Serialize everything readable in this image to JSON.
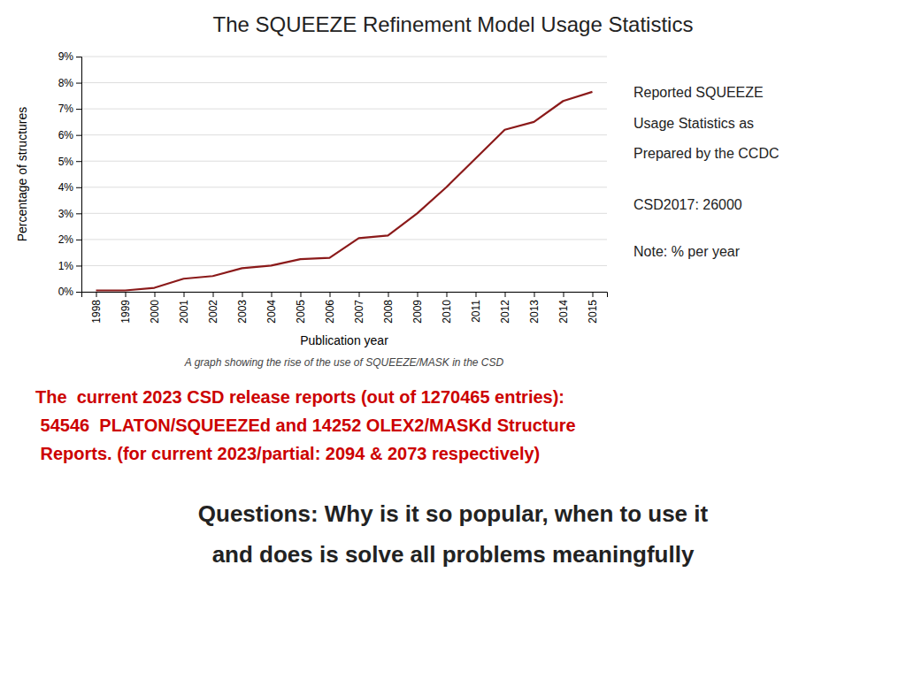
{
  "chart_data": {
    "type": "line",
    "title": "The SQUEEZE Refinement Model Usage Statistics",
    "x": [
      1998,
      1999,
      2000,
      2001,
      2002,
      2003,
      2004,
      2005,
      2006,
      2007,
      2008,
      2009,
      2010,
      2011,
      2012,
      2013,
      2014,
      2015
    ],
    "values": [
      0.05,
      0.05,
      0.15,
      0.5,
      0.6,
      0.9,
      1.0,
      1.25,
      1.3,
      2.05,
      2.15,
      3.0,
      4.0,
      5.1,
      6.2,
      6.5,
      7.3,
      7.65
    ],
    "color": "#8b1a1a",
    "xlabel": "Publication year",
    "ylabel": "Percentage of structures",
    "xlim": [
      1997.5,
      2015.5
    ],
    "xticks": [
      1998,
      1999,
      2000,
      2001,
      2002,
      2003,
      2004,
      2005,
      2006,
      2007,
      2008,
      2009,
      2010,
      2011,
      2012,
      2013,
      2014,
      2015
    ],
    "ylim": [
      0,
      9
    ],
    "yticks": [
      {
        "value": 0,
        "label": "0%"
      },
      {
        "value": 1,
        "label": "1%"
      },
      {
        "value": 2,
        "label": "2%"
      },
      {
        "value": 3,
        "label": "3%"
      },
      {
        "value": 4,
        "label": "4%"
      },
      {
        "value": 5,
        "label": "5%"
      },
      {
        "value": 6,
        "label": "6%"
      },
      {
        "value": 7,
        "label": "7%"
      },
      {
        "value": 8,
        "label": "8%"
      },
      {
        "value": 9,
        "label": "9%"
      }
    ],
    "grid": true,
    "annotations": [
      {
        "text": "A graph showing the rise of the use of SQUEEZE/MASK in the CSD"
      },
      {
        "text": "Reported SQUEEZE"
      },
      {
        "text": "Usage Statistics as"
      },
      {
        "text": "Prepared by the CCDC"
      },
      {
        "text": "CSD2017: 26000"
      },
      {
        "text": "Note: % per year"
      },
      {
        "text": "The  current 2023 CSD release reports (out of 1270465 entries):",
        "color": "#cc0000"
      },
      {
        "text": " 54546  PLATON/SQUEEZEd and 14252 OLEX2/MASKd Structure",
        "color": "#cc0000"
      },
      {
        "text": " Reports. (for current 2023/partial: 2094 & 2073 respectively)",
        "color": "#cc0000"
      },
      {
        "text": "Questions: Why is it so popular, when to use it"
      },
      {
        "text": "and does is solve all problems meaningfully"
      }
    ]
  }
}
